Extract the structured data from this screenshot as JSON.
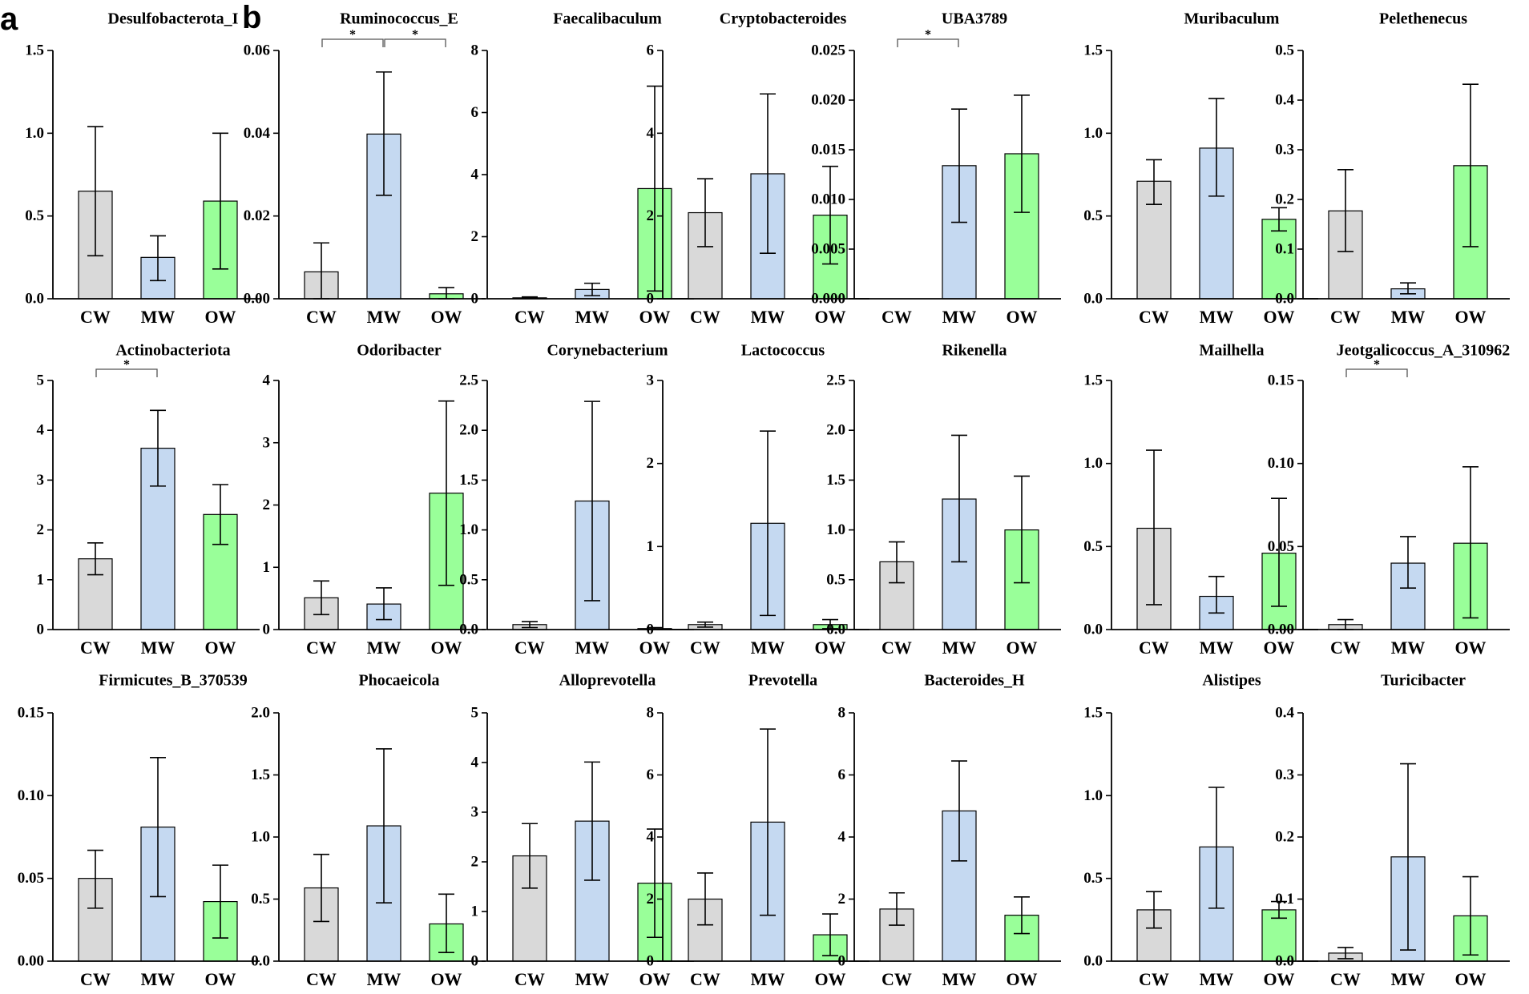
{
  "figure": {
    "panel_labels": [
      "a",
      "b"
    ],
    "colors": {
      "CW": "#d9d9d9",
      "MW": "#c5d9f1",
      "OW": "#99ff99",
      "stroke": "#000000"
    }
  },
  "chart_data": [
    {
      "type": "bar",
      "title": "Desulfobacterota_I",
      "categories": [
        "CW",
        "MW",
        "OW"
      ],
      "values": [
        0.65,
        0.25,
        0.59
      ],
      "errors": [
        [
          0.26,
          1.04
        ],
        [
          0.11,
          0.38
        ],
        [
          0.18,
          1.0
        ]
      ],
      "ylim": [
        0,
        1.5
      ],
      "yticks": [
        "0.0",
        "0.5",
        "1.0",
        "1.5"
      ],
      "significance": []
    },
    {
      "type": "bar",
      "title": "Ruminococcus_E",
      "categories": [
        "CW",
        "MW",
        "OW"
      ],
      "values": [
        0.0065,
        0.0398,
        0.0012
      ],
      "errors": [
        [
          0,
          0.0135
        ],
        [
          0.025,
          0.0548
        ],
        [
          0,
          0.0027
        ]
      ],
      "ylim": [
        0,
        0.06
      ],
      "yticks": [
        "0.00",
        "0.02",
        "0.04",
        "0.06"
      ],
      "significance": [
        {
          "from": 0,
          "to": 1,
          "label": "*"
        },
        {
          "from": 1,
          "to": 2,
          "label": "*"
        }
      ]
    },
    {
      "type": "bar",
      "title": "Faecalibaculum",
      "categories": [
        "CW",
        "MW",
        "OW"
      ],
      "values": [
        0.03,
        0.3,
        3.55
      ],
      "errors": [
        [
          0.01,
          0.06
        ],
        [
          0.1,
          0.5
        ],
        [
          0.25,
          6.85
        ]
      ],
      "ylim": [
        0,
        8
      ],
      "yticks": [
        "0",
        "2",
        "4",
        "6",
        "8"
      ],
      "significance": []
    },
    {
      "type": "bar",
      "title": "Cryptobacteroides",
      "categories": [
        "CW",
        "MW",
        "OW"
      ],
      "values": [
        2.08,
        3.02,
        2.02
      ],
      "errors": [
        [
          1.26,
          2.9
        ],
        [
          1.1,
          4.95
        ],
        [
          0.84,
          3.2
        ]
      ],
      "ylim": [
        0,
        6
      ],
      "yticks": [
        "0",
        "2",
        "4",
        "6"
      ],
      "significance": []
    },
    {
      "type": "bar",
      "title": "UBA3789",
      "categories": [
        "CW",
        "MW",
        "OW"
      ],
      "values": [
        0,
        0.0134,
        0.0146
      ],
      "errors": [
        null,
        [
          0.0077,
          0.0191
        ],
        [
          0.0087,
          0.0205
        ]
      ],
      "ylim": [
        0,
        0.025
      ],
      "yticks": [
        "0.000",
        "0.005",
        "0.010",
        "0.015",
        "0.020",
        "0.025"
      ],
      "significance": [
        {
          "from": 0,
          "to": 1,
          "label": "*"
        }
      ]
    },
    {
      "type": "bar",
      "title": "Muribaculum",
      "categories": [
        "CW",
        "MW",
        "OW"
      ],
      "values": [
        0.71,
        0.91,
        0.48
      ],
      "errors": [
        [
          0.57,
          0.84
        ],
        [
          0.62,
          1.21
        ],
        [
          0.41,
          0.55
        ]
      ],
      "ylim": [
        0,
        1.5
      ],
      "yticks": [
        "0.0",
        "0.5",
        "1.0",
        "1.5"
      ],
      "significance": []
    },
    {
      "type": "bar",
      "title": "Pelethenecus",
      "categories": [
        "CW",
        "MW",
        "OW"
      ],
      "values": [
        0.177,
        0.02,
        0.268
      ],
      "errors": [
        [
          0.095,
          0.26
        ],
        [
          0.01,
          0.032
        ],
        [
          0.105,
          0.432
        ]
      ],
      "ylim": [
        0,
        0.5
      ],
      "yticks": [
        "0.0",
        "0.1",
        "0.2",
        "0.3",
        "0.4",
        "0.5"
      ],
      "significance": []
    },
    {
      "type": "bar",
      "title": "Actinobacteriota",
      "categories": [
        "CW",
        "MW",
        "OW"
      ],
      "values": [
        1.42,
        3.64,
        2.31
      ],
      "errors": [
        [
          1.1,
          1.74
        ],
        [
          2.88,
          4.4
        ],
        [
          1.71,
          2.91
        ]
      ],
      "ylim": [
        0,
        5
      ],
      "yticks": [
        "0",
        "1",
        "2",
        "3",
        "4",
        "5"
      ],
      "significance": [
        {
          "from": 0,
          "to": 1,
          "label": "*"
        }
      ]
    },
    {
      "type": "bar",
      "title": "Odoribacter",
      "categories": [
        "CW",
        "MW",
        "OW"
      ],
      "values": [
        0.51,
        0.41,
        2.19
      ],
      "errors": [
        [
          0.24,
          0.78
        ],
        [
          0.16,
          0.67
        ],
        [
          0.71,
          3.67
        ]
      ],
      "ylim": [
        0,
        4
      ],
      "yticks": [
        "0",
        "1",
        "2",
        "3",
        "4"
      ],
      "significance": []
    },
    {
      "type": "bar",
      "title": "Corynebacterium",
      "categories": [
        "CW",
        "MW",
        "OW"
      ],
      "values": [
        0.05,
        1.29,
        0.01
      ],
      "errors": [
        [
          0.02,
          0.08
        ],
        [
          0.29,
          2.29
        ],
        [
          0,
          0.02
        ]
      ],
      "ylim": [
        0,
        2.5
      ],
      "yticks": [
        "0.0",
        "0.5",
        "1.0",
        "1.5",
        "2.0",
        "2.5"
      ],
      "significance": []
    },
    {
      "type": "bar",
      "title": "Lactococcus",
      "categories": [
        "CW",
        "MW",
        "OW"
      ],
      "values": [
        0.06,
        1.28,
        0.06
      ],
      "errors": [
        [
          0.03,
          0.09
        ],
        [
          0.17,
          2.39
        ],
        [
          0.01,
          0.12
        ]
      ],
      "ylim": [
        0,
        3
      ],
      "yticks": [
        "0",
        "1",
        "2",
        "3"
      ],
      "significance": []
    },
    {
      "type": "bar",
      "title": "Rikenella",
      "categories": [
        "CW",
        "MW",
        "OW"
      ],
      "values": [
        0.68,
        1.31,
        1.0
      ],
      "errors": [
        [
          0.47,
          0.88
        ],
        [
          0.68,
          1.95
        ],
        [
          0.47,
          1.54
        ]
      ],
      "ylim": [
        0,
        2.5
      ],
      "yticks": [
        "0.0",
        "0.5",
        "1.0",
        "1.5",
        "2.0",
        "2.5"
      ],
      "significance": []
    },
    {
      "type": "bar",
      "title": "Mailhella",
      "categories": [
        "CW",
        "MW",
        "OW"
      ],
      "values": [
        0.61,
        0.2,
        0.46
      ],
      "errors": [
        [
          0.15,
          1.08
        ],
        [
          0.1,
          0.32
        ],
        [
          0.14,
          0.79
        ]
      ],
      "ylim": [
        0,
        1.5
      ],
      "yticks": [
        "0.0",
        "0.5",
        "1.0",
        "1.5"
      ],
      "significance": []
    },
    {
      "type": "bar",
      "title": "Jeotgalicoccus_A_310962",
      "categories": [
        "CW",
        "MW",
        "OW"
      ],
      "values": [
        0.003,
        0.04,
        0.052
      ],
      "errors": [
        [
          0,
          0.006
        ],
        [
          0.025,
          0.056
        ],
        [
          0.007,
          0.098
        ]
      ],
      "ylim": [
        0,
        0.15
      ],
      "yticks": [
        "0.00",
        "0.05",
        "0.10",
        "0.15"
      ],
      "significance": [
        {
          "from": 0,
          "to": 1,
          "label": "*"
        }
      ]
    },
    {
      "type": "bar",
      "title": "Firmicutes_B_370539",
      "categories": [
        "CW",
        "MW",
        "OW"
      ],
      "values": [
        0.05,
        0.081,
        0.036
      ],
      "errors": [
        [
          0.032,
          0.067
        ],
        [
          0.039,
          0.123
        ],
        [
          0.014,
          0.058
        ]
      ],
      "ylim": [
        0,
        0.15
      ],
      "yticks": [
        "0.00",
        "0.05",
        "0.10",
        "0.15"
      ],
      "significance": []
    },
    {
      "type": "bar",
      "title": "Phocaeicola",
      "categories": [
        "CW",
        "MW",
        "OW"
      ],
      "values": [
        0.59,
        1.09,
        0.3
      ],
      "errors": [
        [
          0.32,
          0.86
        ],
        [
          0.47,
          1.71
        ],
        [
          0.07,
          0.54
        ]
      ],
      "ylim": [
        0,
        2.0
      ],
      "yticks": [
        "0.0",
        "0.5",
        "1.0",
        "1.5",
        "2.0"
      ],
      "significance": []
    },
    {
      "type": "bar",
      "title": "Alloprevotella",
      "categories": [
        "CW",
        "MW",
        "OW"
      ],
      "values": [
        2.12,
        2.82,
        1.57
      ],
      "errors": [
        [
          1.47,
          2.77
        ],
        [
          1.63,
          4.01
        ],
        [
          0.48,
          2.66
        ]
      ],
      "ylim": [
        0,
        5
      ],
      "yticks": [
        "0",
        "1",
        "2",
        "3",
        "4",
        "5"
      ],
      "significance": []
    },
    {
      "type": "bar",
      "title": "Prevotella",
      "categories": [
        "CW",
        "MW",
        "OW"
      ],
      "values": [
        2.0,
        4.48,
        0.85
      ],
      "errors": [
        [
          1.17,
          2.84
        ],
        [
          1.48,
          7.48
        ],
        [
          0.18,
          1.52
        ]
      ],
      "ylim": [
        0,
        8
      ],
      "yticks": [
        "0",
        "2",
        "4",
        "6",
        "8"
      ],
      "significance": []
    },
    {
      "type": "bar",
      "title": "Bacteroides_H",
      "categories": [
        "CW",
        "MW",
        "OW"
      ],
      "values": [
        1.68,
        4.84,
        1.48
      ],
      "errors": [
        [
          1.16,
          2.2
        ],
        [
          3.23,
          6.45
        ],
        [
          0.89,
          2.07
        ]
      ],
      "ylim": [
        0,
        8
      ],
      "yticks": [
        "0",
        "2",
        "4",
        "6",
        "8"
      ],
      "significance": []
    },
    {
      "type": "bar",
      "title": "Alistipes",
      "categories": [
        "CW",
        "MW",
        "OW"
      ],
      "values": [
        0.31,
        0.69,
        0.31
      ],
      "errors": [
        [
          0.2,
          0.42
        ],
        [
          0.32,
          1.05
        ],
        [
          0.26,
          0.36
        ]
      ],
      "ylim": [
        0,
        1.5
      ],
      "yticks": [
        "0.0",
        "0.5",
        "1.0",
        "1.5"
      ],
      "significance": []
    },
    {
      "type": "bar",
      "title": "Turicibacter",
      "categories": [
        "CW",
        "MW",
        "OW"
      ],
      "values": [
        0.013,
        0.168,
        0.073
      ],
      "errors": [
        [
          0.004,
          0.022
        ],
        [
          0.018,
          0.318
        ],
        [
          0.01,
          0.136
        ]
      ],
      "ylim": [
        0,
        0.4
      ],
      "yticks": [
        "0.0",
        "0.1",
        "0.2",
        "0.3",
        "0.4"
      ],
      "significance": []
    }
  ]
}
